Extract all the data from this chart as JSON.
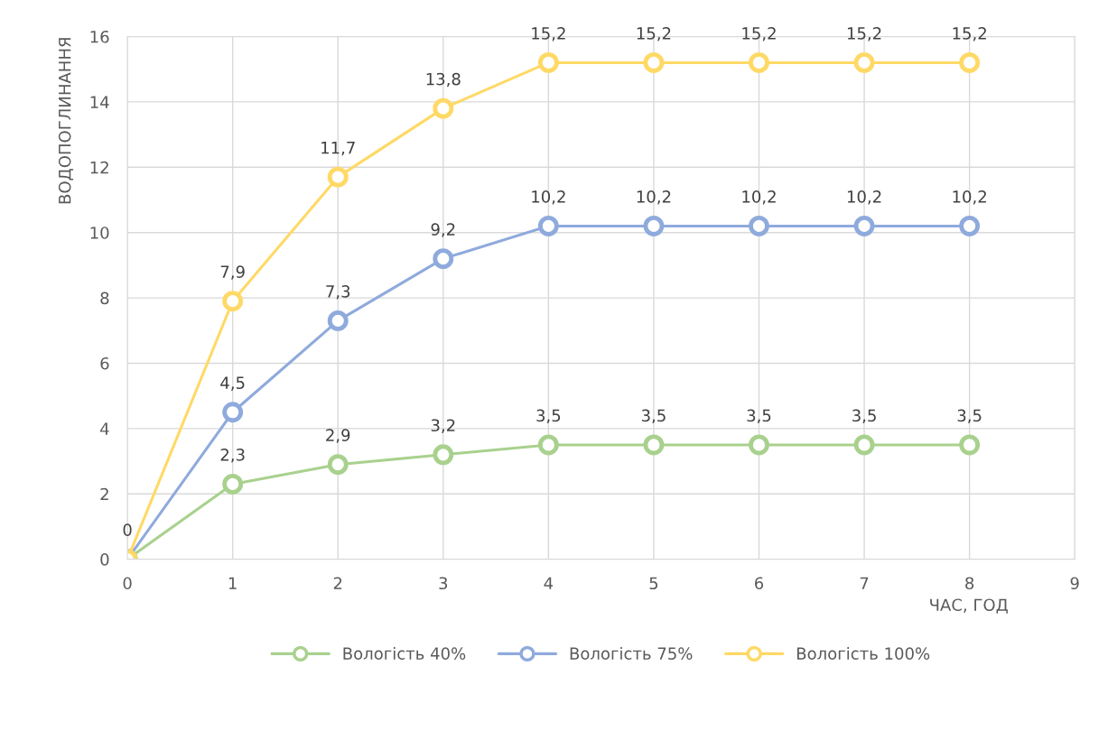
{
  "chart_data": {
    "type": "line",
    "ylabel": "ВОДОПОГЛИНАННЯ",
    "xlabel": "ЧАС, ГОД",
    "x": [
      0,
      1,
      2,
      3,
      4,
      5,
      6,
      7,
      8
    ],
    "series": [
      {
        "name": "Вологість 40%",
        "color": "#a9d18e",
        "values": [
          0,
          2.3,
          2.9,
          3.2,
          3.5,
          3.5,
          3.5,
          3.5,
          3.5
        ],
        "value_labels": [
          null,
          "2,3",
          "2,9",
          "3,2",
          "3,5",
          "3,5",
          "3,5",
          "3,5",
          "3,5"
        ]
      },
      {
        "name": "Вологість 75%",
        "color": "#8faadc",
        "values": [
          0,
          4.5,
          7.3,
          9.2,
          10.2,
          10.2,
          10.2,
          10.2,
          10.2
        ],
        "value_labels": [
          null,
          "4,5",
          "7,3",
          "9,2",
          "10,2",
          "10,2",
          "10,2",
          "10,2",
          "10,2"
        ]
      },
      {
        "name": "Вологість 100%",
        "color": "#ffd966",
        "values": [
          0,
          7.9,
          11.7,
          13.8,
          15.2,
          15.2,
          15.2,
          15.2,
          15.2
        ],
        "value_labels": [
          "0",
          "7,9",
          "11,7",
          "13,8",
          "15,2",
          "15,2",
          "15,2",
          "15,2",
          "15,2"
        ]
      }
    ],
    "xlim": [
      0,
      9
    ],
    "xticks": [
      0,
      1,
      2,
      3,
      4,
      5,
      6,
      7,
      8,
      9
    ],
    "ylim": [
      0,
      16
    ],
    "yticks": [
      0,
      2,
      4,
      6,
      8,
      10,
      12,
      14,
      16
    ],
    "grid": true,
    "legend": "bottom",
    "marker": "circle",
    "line_style": "solid"
  }
}
